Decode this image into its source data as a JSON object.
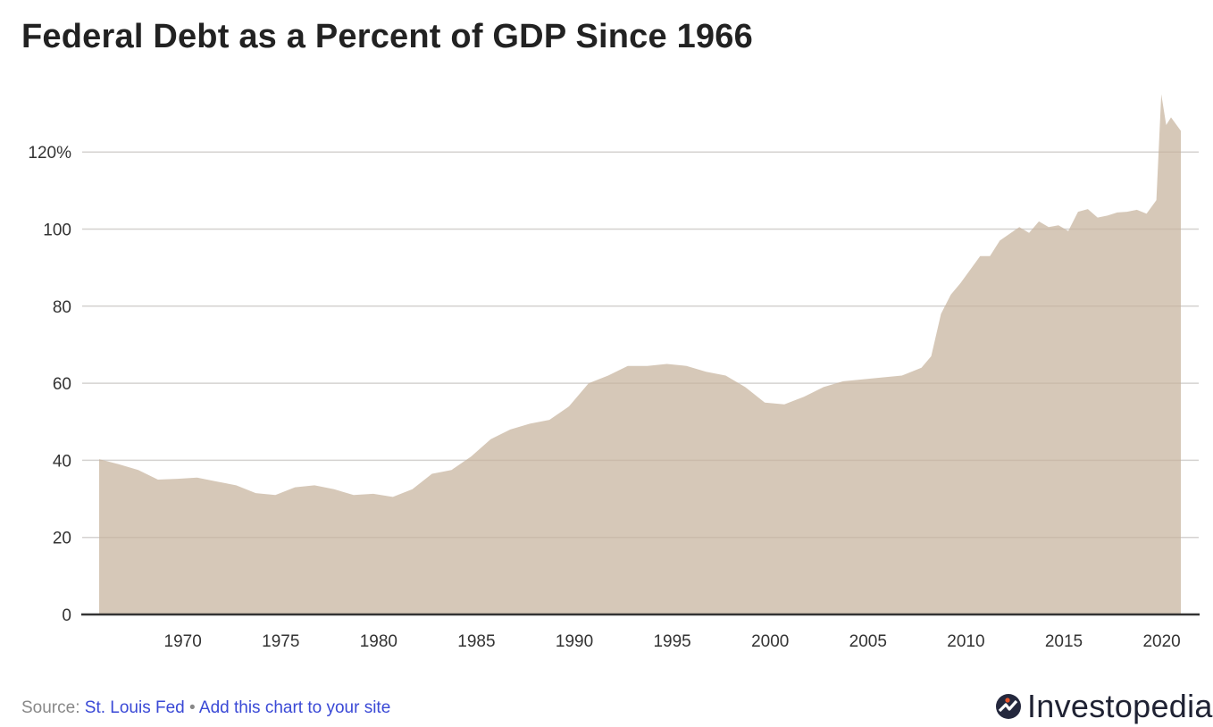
{
  "title": "Federal Debt as a Percent of GDP Since 1966",
  "footer": {
    "source_label": "Source:",
    "source_link": "St. Louis Fed",
    "separator": "•",
    "embed_link": "Add this chart to your site"
  },
  "logo": {
    "text": "Investopedia"
  },
  "colors": {
    "area": "#d6c8b8",
    "grid": "#e2e2e2",
    "axis": "#333333",
    "link": "#3a49d6",
    "logo_dark": "#24283d",
    "logo_accent": "#e8542a"
  },
  "chart_data": {
    "type": "area",
    "title": "Federal Debt as a Percent of GDP Since 1966",
    "xlabel": "",
    "ylabel": "",
    "xlim": [
      1966,
      2021.25
    ],
    "ylim": [
      0,
      135
    ],
    "grid": true,
    "legend": "none",
    "x_ticks": [
      1970,
      1975,
      1980,
      1985,
      1990,
      1995,
      2000,
      2005,
      2010,
      2015,
      2020
    ],
    "y_ticks": [
      0,
      20,
      40,
      60,
      80,
      100,
      120
    ],
    "y_tick_labels": [
      "0",
      "20",
      "40",
      "60",
      "80",
      "100",
      "120%"
    ],
    "x": [
      1966,
      1967,
      1968,
      1969,
      1970,
      1971,
      1972,
      1973,
      1974,
      1975,
      1976,
      1977,
      1978,
      1979,
      1980,
      1981,
      1982,
      1983,
      1984,
      1985,
      1986,
      1987,
      1988,
      1989,
      1990,
      1991,
      1992,
      1993,
      1994,
      1995,
      1996,
      1997,
      1998,
      1999,
      2000,
      2001,
      2002,
      2003,
      2004,
      2005,
      2006,
      2007,
      2008,
      2008.5,
      2009,
      2009.5,
      2010,
      2011,
      2011.5,
      2012,
      2013,
      2013.5,
      2014,
      2014.5,
      2015,
      2015.5,
      2016,
      2016.5,
      2017,
      2017.5,
      2018,
      2018.5,
      2019,
      2019.5,
      2020,
      2020.25,
      2020.5,
      2020.75,
      2021.25
    ],
    "values": [
      40.3,
      39,
      37.5,
      35,
      35.2,
      35.5,
      34.5,
      33.5,
      31.5,
      31,
      33,
      33.5,
      32.5,
      31,
      31.3,
      30.5,
      32.5,
      36.5,
      37.5,
      41,
      45.5,
      48,
      49.5,
      50.5,
      54,
      60,
      62,
      64.5,
      64.5,
      65,
      64.5,
      63,
      62,
      59,
      55,
      54.5,
      56.5,
      59,
      60.5,
      61,
      61.5,
      62,
      64,
      67,
      78,
      83,
      86,
      93,
      93,
      97,
      100.5,
      99,
      102,
      100.5,
      101,
      99.5,
      104.5,
      105.2,
      103,
      103.5,
      104.3,
      104.5,
      105,
      104,
      107.5,
      135,
      127,
      129,
      125.5
    ]
  }
}
